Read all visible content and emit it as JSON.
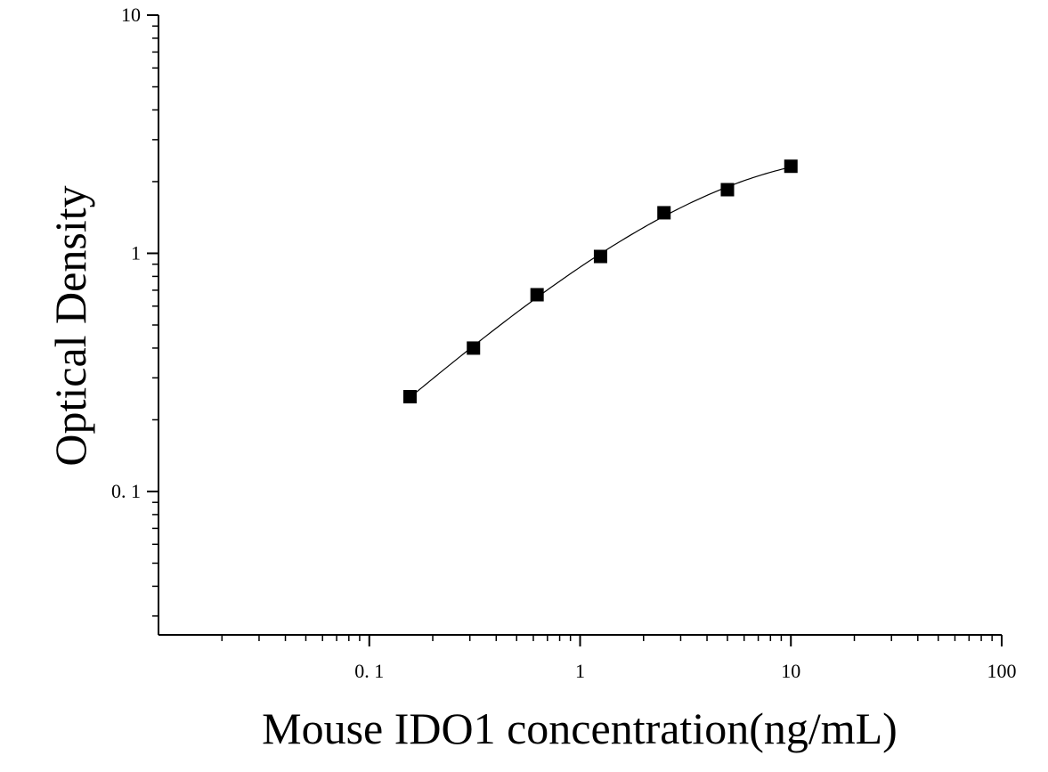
{
  "chart_data": {
    "type": "scatter",
    "title": "",
    "xlabel": "Mouse IDO1 concentration(ng/mL)",
    "ylabel": "Optical Density",
    "x_scale": "log",
    "y_scale": "log",
    "xlim": [
      0.01,
      100
    ],
    "ylim": [
      0.025,
      10
    ],
    "x_ticks": [
      {
        "value": 0.1,
        "label": "0. 1"
      },
      {
        "value": 1,
        "label": "1"
      },
      {
        "value": 10,
        "label": "10"
      },
      {
        "value": 100,
        "label": "100"
      }
    ],
    "y_ticks": [
      {
        "value": 0.1,
        "label": "0. 1"
      },
      {
        "value": 1,
        "label": "1"
      },
      {
        "value": 10,
        "label": "10"
      }
    ],
    "grid": false,
    "legend": "none",
    "marker": "square",
    "fit_line": true,
    "colors": {
      "marker": "#000000",
      "line": "#000000",
      "axis": "#000000"
    },
    "series": [
      {
        "x": [
          0.156,
          0.312,
          0.625,
          1.25,
          2.5,
          5,
          10
        ],
        "y": [
          0.25,
          0.4,
          0.67,
          0.97,
          1.48,
          1.85,
          2.32
        ]
      }
    ]
  }
}
